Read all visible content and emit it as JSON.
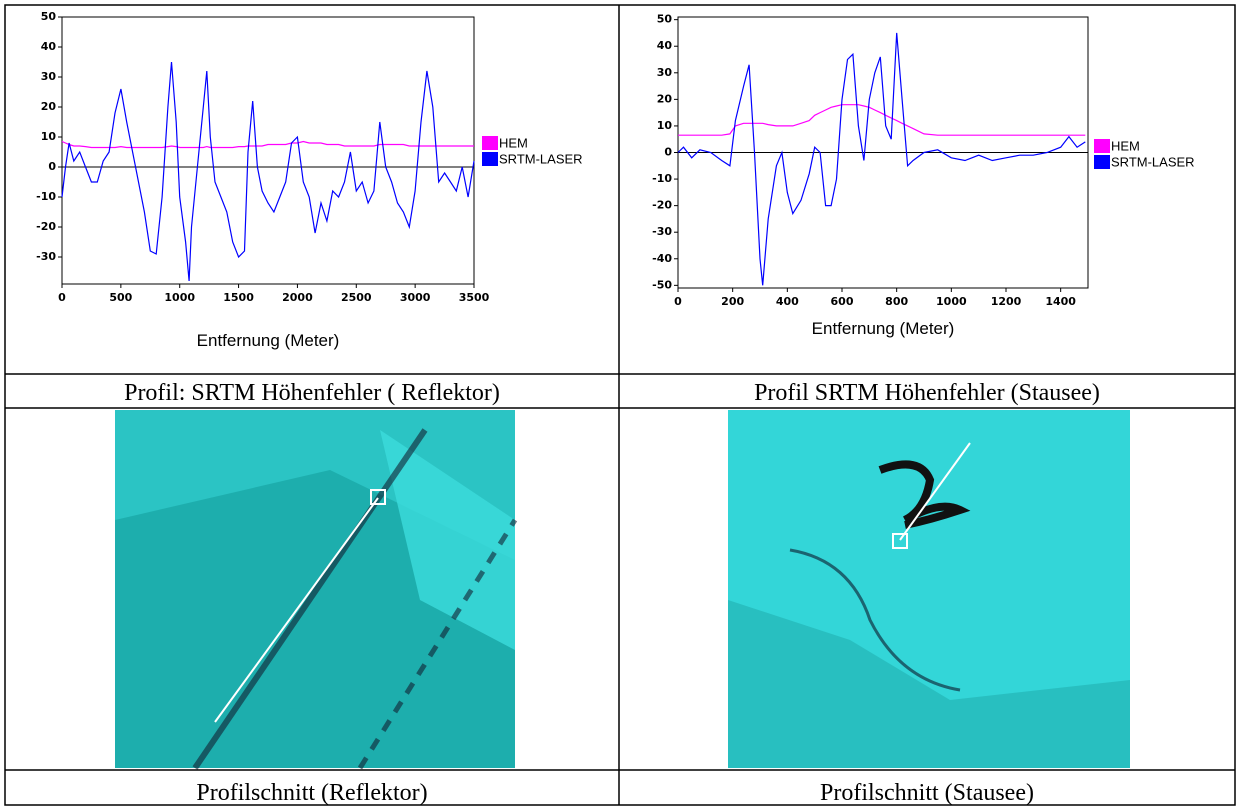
{
  "chart_data": [
    {
      "type": "line",
      "xlabel": "Entfernung (Meter)",
      "x": [
        0,
        30,
        60,
        100,
        150,
        200,
        250,
        300,
        350,
        400,
        450,
        500,
        550,
        600,
        650,
        700,
        750,
        800,
        850,
        900,
        930,
        970,
        1000,
        1050,
        1080,
        1100,
        1150,
        1200,
        1230,
        1260,
        1300,
        1350,
        1400,
        1450,
        1500,
        1550,
        1580,
        1620,
        1660,
        1700,
        1750,
        1800,
        1850,
        1900,
        1950,
        2000,
        2050,
        2100,
        2150,
        2200,
        2250,
        2300,
        2350,
        2400,
        2450,
        2500,
        2550,
        2600,
        2650,
        2700,
        2750,
        2800,
        2850,
        2900,
        2950,
        3000,
        3050,
        3100,
        3150,
        3200,
        3250,
        3300,
        3350,
        3400,
        3450,
        3500
      ],
      "series": [
        {
          "name": "HEM",
          "color": "#ff00ff",
          "values": [
            8.5,
            8,
            7.5,
            7,
            7,
            6.8,
            6.5,
            6.5,
            6.5,
            6.5,
            6.5,
            6.8,
            6.5,
            6.5,
            6.5,
            6.5,
            6.5,
            6.5,
            6.5,
            6.8,
            7,
            6.8,
            6.5,
            6.5,
            6.5,
            6.5,
            6.5,
            6.5,
            6.8,
            6.5,
            6.5,
            6.5,
            6.5,
            6.5,
            6.8,
            6.8,
            7,
            7,
            7,
            7,
            7.5,
            7.5,
            7.5,
            7.5,
            8,
            8,
            8.5,
            8,
            8,
            8,
            7.5,
            7.5,
            7.5,
            7,
            7,
            7,
            7,
            7,
            7,
            7.5,
            7.5,
            7.5,
            7.5,
            7.5,
            7,
            7,
            7,
            7,
            7,
            7,
            7,
            7,
            7,
            7,
            7,
            7
          ]
        },
        {
          "name": "SRTM-LASER",
          "color": "#0000ff",
          "values": [
            -10,
            0,
            8,
            2,
            5,
            0,
            -5,
            -5,
            2,
            5,
            18,
            26,
            15,
            5,
            -5,
            -15,
            -28,
            -29,
            -10,
            20,
            35,
            15,
            -10,
            -25,
            -38,
            -20,
            0,
            20,
            32,
            10,
            -5,
            -10,
            -15,
            -25,
            -30,
            -28,
            5,
            22,
            0,
            -8,
            -12,
            -15,
            -10,
            -5,
            8,
            10,
            -5,
            -10,
            -22,
            -12,
            -18,
            -8,
            -10,
            -5,
            5,
            -8,
            -5,
            -12,
            -8,
            15,
            0,
            -5,
            -12,
            -15,
            -20,
            -8,
            15,
            32,
            20,
            -5,
            -2,
            -5,
            -8,
            0,
            -10,
            2
          ]
        }
      ],
      "xlim": [
        0,
        3500
      ],
      "xticks": [
        0,
        500,
        1000,
        1500,
        2000,
        2500,
        3000,
        3500
      ],
      "ylim": [
        -39,
        50
      ],
      "yticks": [
        -30,
        -20,
        -10,
        0,
        10,
        20,
        30,
        40,
        50
      ]
    },
    {
      "type": "line",
      "xlabel": "Entfernung (Meter)",
      "x": [
        0,
        20,
        50,
        80,
        120,
        160,
        190,
        210,
        240,
        260,
        280,
        300,
        310,
        330,
        360,
        380,
        400,
        420,
        450,
        480,
        500,
        520,
        540,
        560,
        580,
        600,
        620,
        640,
        660,
        680,
        700,
        720,
        740,
        760,
        780,
        800,
        820,
        840,
        860,
        900,
        950,
        1000,
        1050,
        1100,
        1150,
        1200,
        1250,
        1300,
        1350,
        1400,
        1430,
        1460,
        1490
      ],
      "series": [
        {
          "name": "HEM",
          "color": "#ff00ff",
          "values": [
            6.5,
            6.5,
            6.5,
            6.5,
            6.5,
            6.5,
            7,
            10,
            11,
            11,
            11,
            11,
            11,
            10.5,
            10,
            10,
            10,
            10,
            11,
            12,
            14,
            15,
            16,
            17,
            17.5,
            18,
            18,
            18,
            18,
            17.5,
            17,
            16,
            15,
            14,
            13,
            12,
            11,
            10,
            9,
            7,
            6.5,
            6.5,
            6.5,
            6.5,
            6.5,
            6.5,
            6.5,
            6.5,
            6.5,
            6.5,
            6.5,
            6.5,
            6.5
          ]
        },
        {
          "name": "SRTM-LASER",
          "color": "#0000ff",
          "values": [
            0,
            2,
            -2,
            1,
            0,
            -3,
            -5,
            12,
            25,
            33,
            0,
            -40,
            -50,
            -25,
            -5,
            0,
            -15,
            -23,
            -18,
            -8,
            2,
            0,
            -20,
            -20,
            -10,
            20,
            35,
            37,
            10,
            -3,
            20,
            30,
            36,
            10,
            5,
            45,
            20,
            -5,
            -3,
            0,
            1,
            -2,
            -3,
            -1,
            -3,
            -2,
            -1,
            -1,
            0,
            2,
            6,
            2,
            4
          ]
        }
      ],
      "xlim": [
        0,
        1500
      ],
      "xticks": [
        0,
        200,
        400,
        600,
        800,
        1000,
        1200,
        1400
      ],
      "ylim": [
        -51,
        51
      ],
      "yticks": [
        -50,
        -40,
        -30,
        -20,
        -10,
        0,
        10,
        20,
        30,
        40,
        50
      ]
    }
  ],
  "table": {
    "captions": [
      [
        "Profil: SRTM Höhenfehler ( Reflektor)",
        "Profil SRTM Höhenfehler (Stausee)"
      ],
      [
        "Profilschnitt (Reflektor)",
        "Profilschnitt (Stausee)"
      ]
    ]
  }
}
